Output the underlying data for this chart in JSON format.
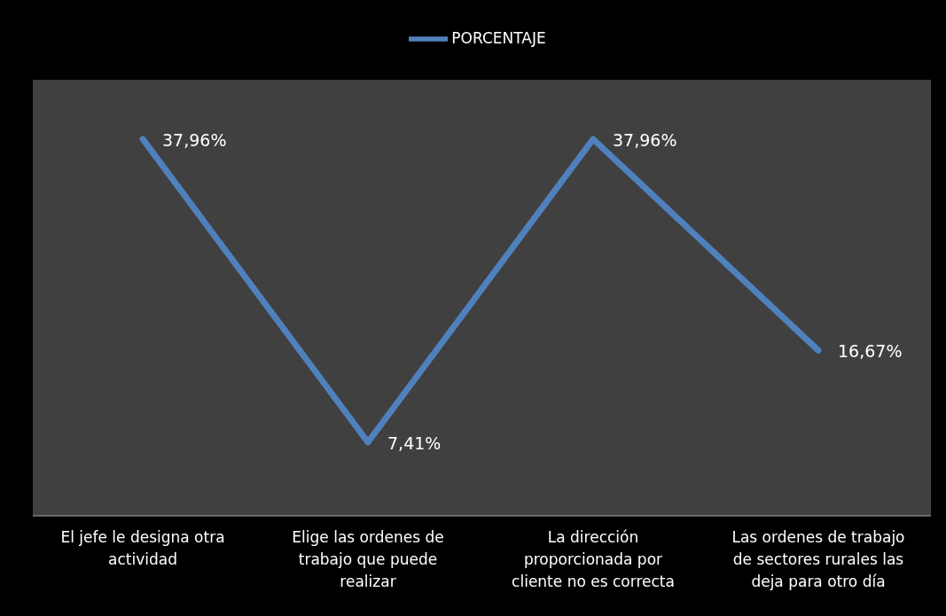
{
  "chart_data": {
    "type": "line",
    "categories": [
      "El jefe le designa otra actividad",
      "Elige las ordenes de trabajo que puede realizar",
      "La dirección proporcionada por cliente no es correcta",
      "Las ordenes de trabajo de sectores rurales las deja para otro día"
    ],
    "series": [
      {
        "name": "PORCENTAJE",
        "color": "#4f81bd",
        "values": [
          37.96,
          7.41,
          37.96,
          16.67
        ],
        "value_labels": [
          "37,96%",
          "7,41%",
          "37,96%",
          "16,67%"
        ]
      }
    ],
    "legend": "top",
    "marker": "none"
  }
}
